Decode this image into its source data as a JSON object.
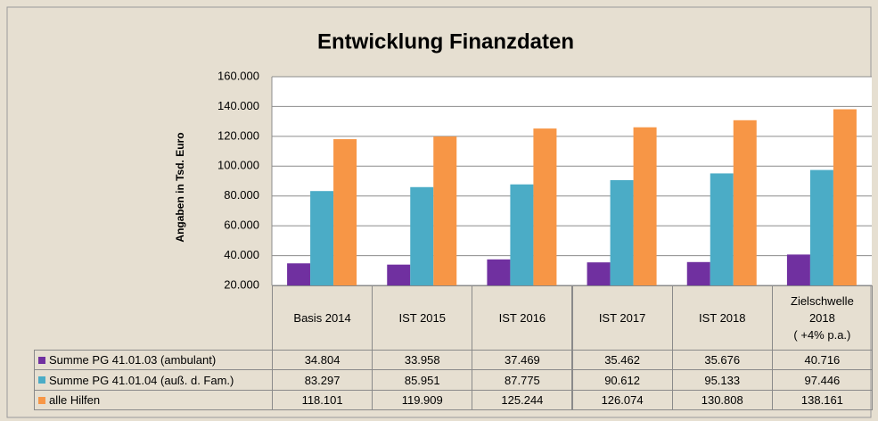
{
  "chart_data": {
    "type": "bar",
    "title": "Entwicklung Finanzdaten",
    "y_label": "Angaben in Tsd. Euro",
    "categories": [
      "Basis 2014",
      "IST 2015",
      "IST 2016",
      "IST 2017",
      "IST 2018",
      "Zielschwelle\n2018\n( +4% p.a.)"
    ],
    "series": [
      {
        "name": "Summe PG 41.01.03 (ambulant)",
        "color": "#7030a0",
        "values": [
          34804,
          33958,
          37469,
          35462,
          35676,
          40716
        ],
        "value_labels": [
          "34.804",
          "33.958",
          "37.469",
          "35.462",
          "35.676",
          "40.716"
        ]
      },
      {
        "name": "Summe PG 41.01.04 (auß. d. Fam.)",
        "color": "#4bacc6",
        "values": [
          83297,
          85951,
          87775,
          90612,
          95133,
          97446
        ],
        "value_labels": [
          "83.297",
          "85.951",
          "87.775",
          "90.612",
          "95.133",
          "97.446"
        ]
      },
      {
        "name": "alle Hilfen",
        "color": "#f79646",
        "values": [
          118101,
          119909,
          125244,
          126074,
          130808,
          138161
        ],
        "value_labels": [
          "118.101",
          "119.909",
          "125.244",
          "126.074",
          "130.808",
          "138.161"
        ]
      }
    ],
    "ylim": [
      20000,
      160000
    ],
    "yticks": [
      {
        "value": 20000,
        "label": "20.000"
      },
      {
        "value": 40000,
        "label": "40.000"
      },
      {
        "value": 60000,
        "label": "60.000"
      },
      {
        "value": 80000,
        "label": "80.000"
      },
      {
        "value": 100000,
        "label": "100.000"
      },
      {
        "value": 120000,
        "label": "120.000"
      },
      {
        "value": 140000,
        "label": "140.000"
      },
      {
        "value": 160000,
        "label": "160.000"
      }
    ],
    "grid": true
  }
}
